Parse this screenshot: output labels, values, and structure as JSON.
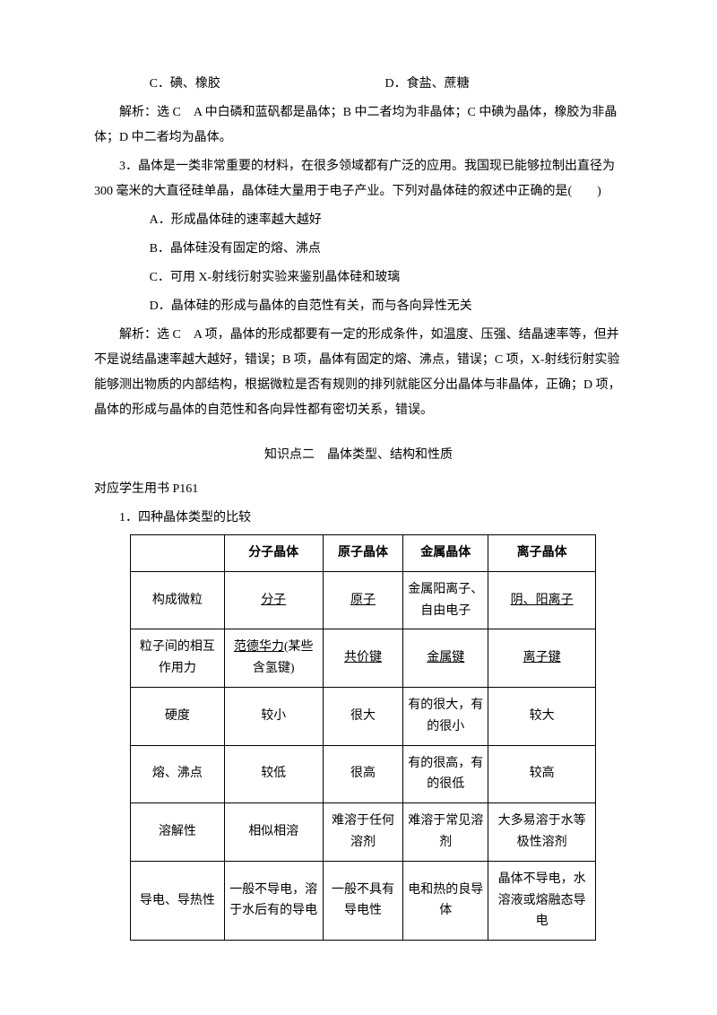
{
  "q2": {
    "optC": "C．碘、橡胶",
    "optD": "D．食盐、蔗糖",
    "analysis": "解析：选 C　A 中白磷和蓝矾都是晶体；B 中二者均为非晶体；C 中碘为晶体，橡胶为非晶体；D 中二者均为晶体。"
  },
  "q3": {
    "stem": "3．晶体是一类非常重要的材料，在很多领域都有广泛的应用。我国现已能够拉制出直径为 300 毫米的大直径硅单晶，晶体硅大量用于电子产业。下列对晶体硅的叙述中正确的是(　　)",
    "optA": "A．形成晶体硅的速率越大越好",
    "optB": "B．晶体硅没有固定的熔、沸点",
    "optC": "C．可用 X-射线衍射实验来鉴别晶体硅和玻璃",
    "optD": "D．晶体硅的形成与晶体的自范性有关，而与各向异性无关",
    "analysis": "解析：选 C　A 项，晶体的形成都要有一定的形成条件，如温度、压强、结晶速率等，但并不是说结晶速率越大越好，错误；B 项，晶体有固定的熔、沸点，错误；C 项，X-射线衍射实验能够测出物质的内部结构，根据微粒是否有规则的排列就能区分出晶体与非晶体，正确；D 项，晶体的形成与晶体的自范性和各向异性都有密切关系，错误。"
  },
  "section2": {
    "title": "知识点二　晶体类型、结构和性质",
    "ref": "对应学生用书 P161",
    "line1": "1．四种晶体类型的比较"
  },
  "table": {
    "headers": [
      "",
      "分子晶体",
      "原子晶体",
      "金属晶体",
      "离子晶体"
    ],
    "rows": [
      {
        "label": "构成微粒",
        "c1": "分子",
        "c1u": true,
        "c2": "原子",
        "c2u": true,
        "c3": "金属阳离子、自由电子",
        "c3u": false,
        "c4": "阴、阳离子",
        "c4u": true
      },
      {
        "label": "粒子间的相互作用力",
        "c1_pre": "范德华力",
        "c1_suf": "(某些含氢键)",
        "c2": "共价键",
        "c2u": true,
        "c3": "金属键",
        "c3u": true,
        "c4": "离子键",
        "c4u": true
      },
      {
        "label": "硬度",
        "c1": "较小",
        "c2": "很大",
        "c3": "有的很大，有的很小",
        "c4": "较大"
      },
      {
        "label": "熔、沸点",
        "c1": "较低",
        "c2": "很高",
        "c3": "有的很高，有的很低",
        "c4": "较高"
      },
      {
        "label": "溶解性",
        "c1": "相似相溶",
        "c2": "难溶于任何溶剂",
        "c3": "难溶于常见溶剂",
        "c4": "大多易溶于水等极性溶剂"
      },
      {
        "label": "导电、导热性",
        "c1": "一般不导电，溶于水后有的导电",
        "c2": "一般不具有导电性",
        "c3": "电和热的良导体",
        "c4": "晶体不导电，水溶液或熔融态导电"
      }
    ]
  }
}
